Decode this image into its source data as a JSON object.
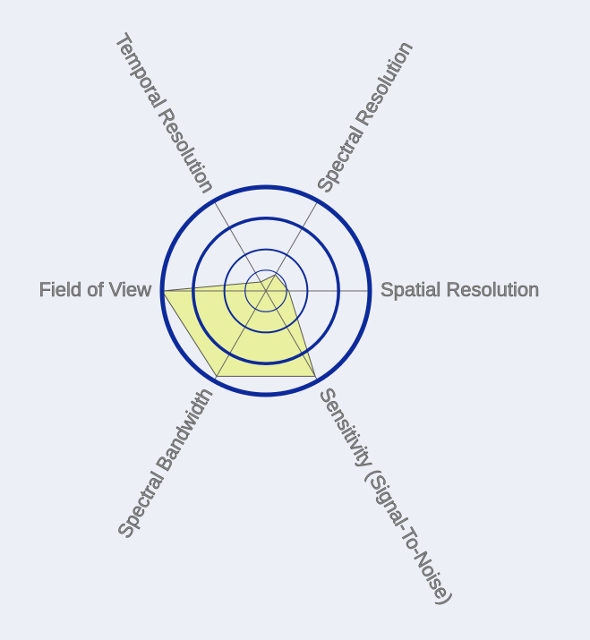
{
  "chart_data": {
    "type": "radar",
    "categories": [
      "Spatial Resolution",
      "Spectral Resolution",
      "Temporal Resolution",
      "Field of View",
      "Spectral Bandwidth",
      "Sensitivity (Signal-To-Noise)"
    ],
    "values": [
      22,
      18,
      10,
      100,
      95,
      95
    ],
    "color": "#e8f08a",
    "ring_color": "#0d2a9a",
    "rlim": [
      0,
      100
    ],
    "rticks": [
      20,
      40,
      70,
      100
    ]
  }
}
